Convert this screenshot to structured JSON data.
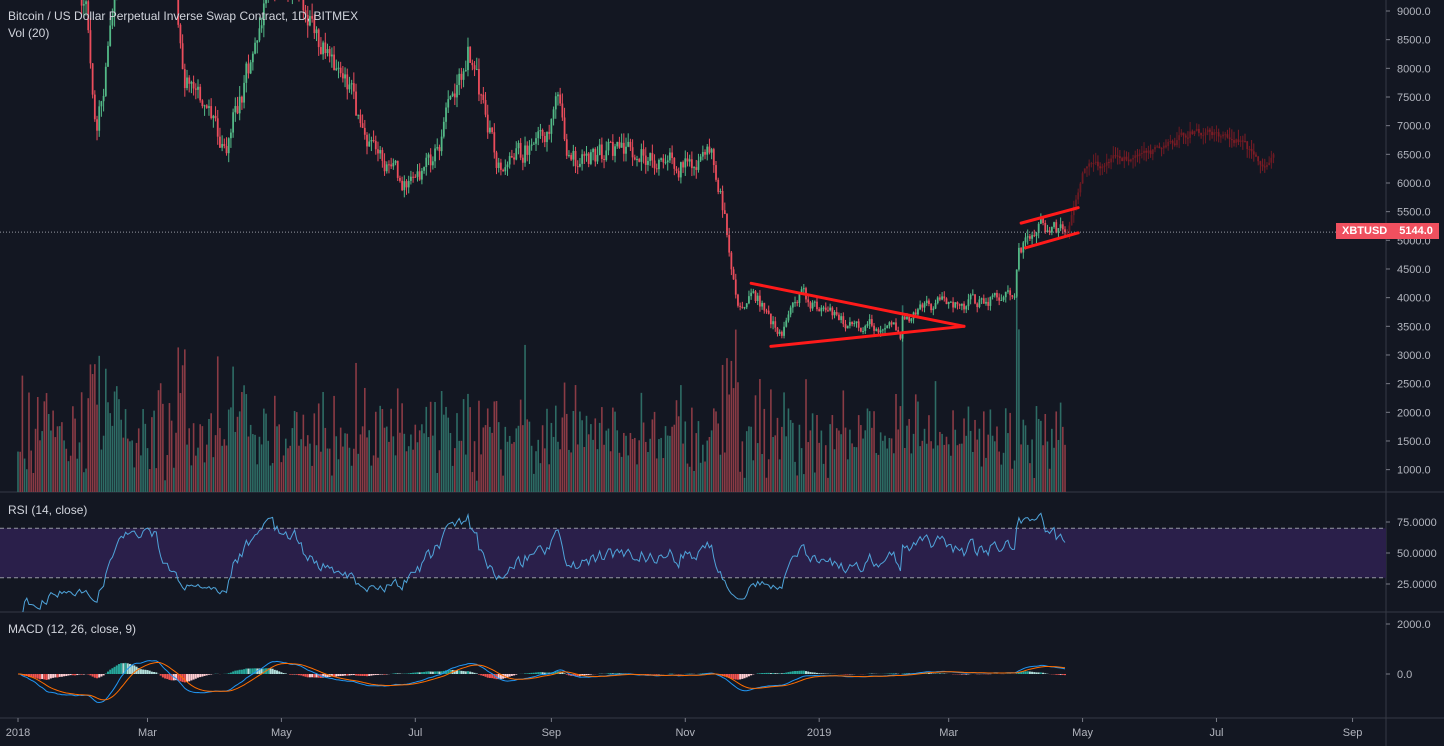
{
  "header": {
    "title": "Bitcoin / US Dollar Perpetual Inverse Swap Contract, 1D, BITMEX",
    "volume_label": "Vol (20)",
    "rsi_label": "RSI (14, close)",
    "macd_label": "MACD (12, 26, close, 9)"
  },
  "price_tag": {
    "symbol": "XBTUSD",
    "price": "5144.0",
    "color": "#f0505f"
  },
  "colors": {
    "background": "#131722",
    "up": "#53b987",
    "down": "#eb4d5c",
    "rsi_line": "#4fa3d9",
    "rsi_band": "#2a1f4a",
    "macd_line": "#2196f3",
    "signal_line": "#ff6d00",
    "drawing": "#ff1a1a"
  },
  "chart_data": [
    {
      "type": "candlestick",
      "title": "Bitcoin / US Dollar Perpetual Inverse Swap Contract, 1D, BITMEX",
      "price_axis": {
        "range": [
          600,
          9200
        ],
        "ticks": [
          "9000.0",
          "8500.0",
          "8000.0",
          "7500.0",
          "7000.0",
          "6500.0",
          "6000.0",
          "5500.0",
          "5000.0",
          "4500.0",
          "4000.0",
          "3500.0",
          "3000.0",
          "2500.0",
          "2000.0",
          "1500.0",
          "1000.0"
        ]
      },
      "time_axis": {
        "ticks": [
          {
            "label": "2018",
            "date": "2018-01-01"
          },
          {
            "label": "Mar",
            "date": "2018-03-01"
          },
          {
            "label": "May",
            "date": "2018-05-01"
          },
          {
            "label": "Jul",
            "date": "2018-07-01"
          },
          {
            "label": "Sep",
            "date": "2018-09-01"
          },
          {
            "label": "Nov",
            "date": "2018-11-01"
          },
          {
            "label": "2019",
            "date": "2019-01-01"
          },
          {
            "label": "Mar",
            "date": "2019-03-01"
          },
          {
            "label": "May",
            "date": "2019-05-01"
          },
          {
            "label": "Jul",
            "date": "2019-07-01"
          },
          {
            "label": "Sep",
            "date": "2019-09-01"
          }
        ]
      },
      "close_anchors": [
        [
          "2018-01-01",
          13500
        ],
        [
          "2018-01-15",
          11000
        ],
        [
          "2018-02-01",
          9000
        ],
        [
          "2018-02-06",
          6900
        ],
        [
          "2018-02-20",
          11000
        ],
        [
          "2018-03-05",
          11300
        ],
        [
          "2018-03-18",
          8000
        ],
        [
          "2018-04-01",
          6800
        ],
        [
          "2018-04-06",
          6600
        ],
        [
          "2018-04-25",
          9300
        ],
        [
          "2018-05-06",
          9600
        ],
        [
          "2018-05-20",
          8300
        ],
        [
          "2018-06-01",
          7500
        ],
        [
          "2018-06-13",
          6400
        ],
        [
          "2018-06-28",
          5900
        ],
        [
          "2018-07-10",
          6500
        ],
        [
          "2018-07-25",
          8300
        ],
        [
          "2018-08-08",
          6300
        ],
        [
          "2018-08-15",
          6300
        ],
        [
          "2018-08-27",
          6900
        ],
        [
          "2018-09-04",
          7300
        ],
        [
          "2018-09-10",
          6300
        ],
        [
          "2018-10-01",
          6600
        ],
        [
          "2018-10-15",
          6500
        ],
        [
          "2018-11-01",
          6350
        ],
        [
          "2018-11-13",
          6400
        ],
        [
          "2018-11-19",
          5500
        ],
        [
          "2018-11-25",
          3800
        ],
        [
          "2018-12-01",
          4200
        ],
        [
          "2018-12-15",
          3300
        ],
        [
          "2018-12-20",
          3900
        ],
        [
          "2018-12-24",
          4000
        ],
        [
          "2019-01-10",
          3600
        ],
        [
          "2019-01-25",
          3550
        ],
        [
          "2019-02-07",
          3400
        ],
        [
          "2019-02-08",
          3650
        ],
        [
          "2019-02-24",
          3900
        ],
        [
          "2019-03-15",
          3900
        ],
        [
          "2019-03-31",
          4100
        ],
        [
          "2019-04-02",
          4900
        ],
        [
          "2019-04-10",
          5300
        ],
        [
          "2019-04-23",
          5144
        ]
      ],
      "projection_anchors": [
        [
          "2019-04-24",
          5150
        ],
        [
          "2019-04-28",
          5700
        ],
        [
          "2019-05-01",
          6200
        ],
        [
          "2019-05-15",
          6400
        ],
        [
          "2019-06-01",
          6500
        ],
        [
          "2019-06-20",
          6900
        ],
        [
          "2019-07-10",
          6800
        ],
        [
          "2019-07-22",
          6300
        ],
        [
          "2019-07-27",
          6500
        ]
      ],
      "last_price": 5144.0,
      "drawings": [
        {
          "from": [
            "2018-12-01",
            4250
          ],
          "to": [
            "2019-03-08",
            3500
          ]
        },
        {
          "from": [
            "2018-12-10",
            3150
          ],
          "to": [
            "2019-03-08",
            3500
          ]
        },
        {
          "from": [
            "2019-04-03",
            5300
          ],
          "to": [
            "2019-04-29",
            5570
          ]
        },
        {
          "from": [
            "2019-04-05",
            4870
          ],
          "to": [
            "2019-04-29",
            5130
          ]
        }
      ]
    },
    {
      "type": "bar",
      "name": "Vol (20)",
      "axis_ticks": [
        "2500.0",
        "2000.0",
        "1500.0",
        "1000.0"
      ]
    },
    {
      "type": "line",
      "name": "RSI (14, close)",
      "period": 14,
      "bands": [
        30,
        70
      ],
      "axis_ticks": [
        "75.0000",
        "50.0000",
        "25.0000"
      ]
    },
    {
      "type": "line",
      "name": "MACD (12, 26, close, 9)",
      "fast": 12,
      "slow": 26,
      "signal": 9,
      "axis_ticks": [
        "2000.0",
        "0.0"
      ]
    }
  ]
}
